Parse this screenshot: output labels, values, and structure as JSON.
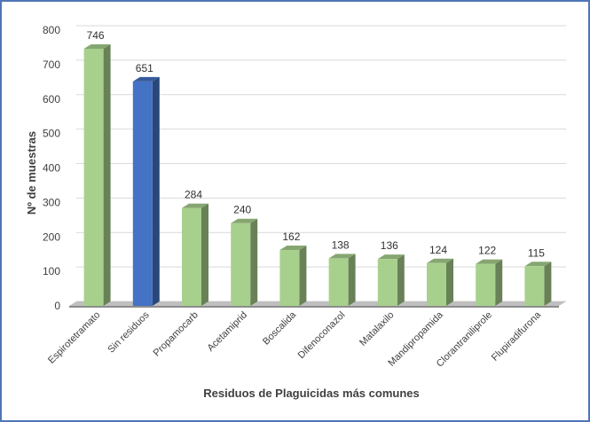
{
  "chart_data": {
    "type": "bar",
    "title": "",
    "xlabel": "Residuos de Plaguicidas  más comunes",
    "ylabel": "Nº de muestras",
    "ylim": [
      0,
      800
    ],
    "yticks": [
      0,
      100,
      200,
      300,
      400,
      500,
      600,
      700,
      800
    ],
    "grid": true,
    "legend": "none",
    "categories": [
      "Espirotetramato",
      "Sin residuos",
      "Propamocarb",
      "Acetamiprid",
      "Boscalida",
      "Difenoconazol",
      "Matalaxilo",
      "Mandipropamida",
      "Clorantraniliprole",
      "Flupiradifurona"
    ],
    "values": [
      746,
      651,
      284,
      240,
      162,
      138,
      136,
      124,
      122,
      115
    ],
    "data_labels": [
      "746",
      "651",
      "284",
      "240",
      "162",
      "138",
      "136",
      "124",
      "122",
      "115"
    ],
    "colors": {
      "default_bar": "#a8d08d",
      "highlight_bar": "#4472c4",
      "highlight_category": "Sin residuos",
      "frame": "#4f75b5"
    }
  }
}
